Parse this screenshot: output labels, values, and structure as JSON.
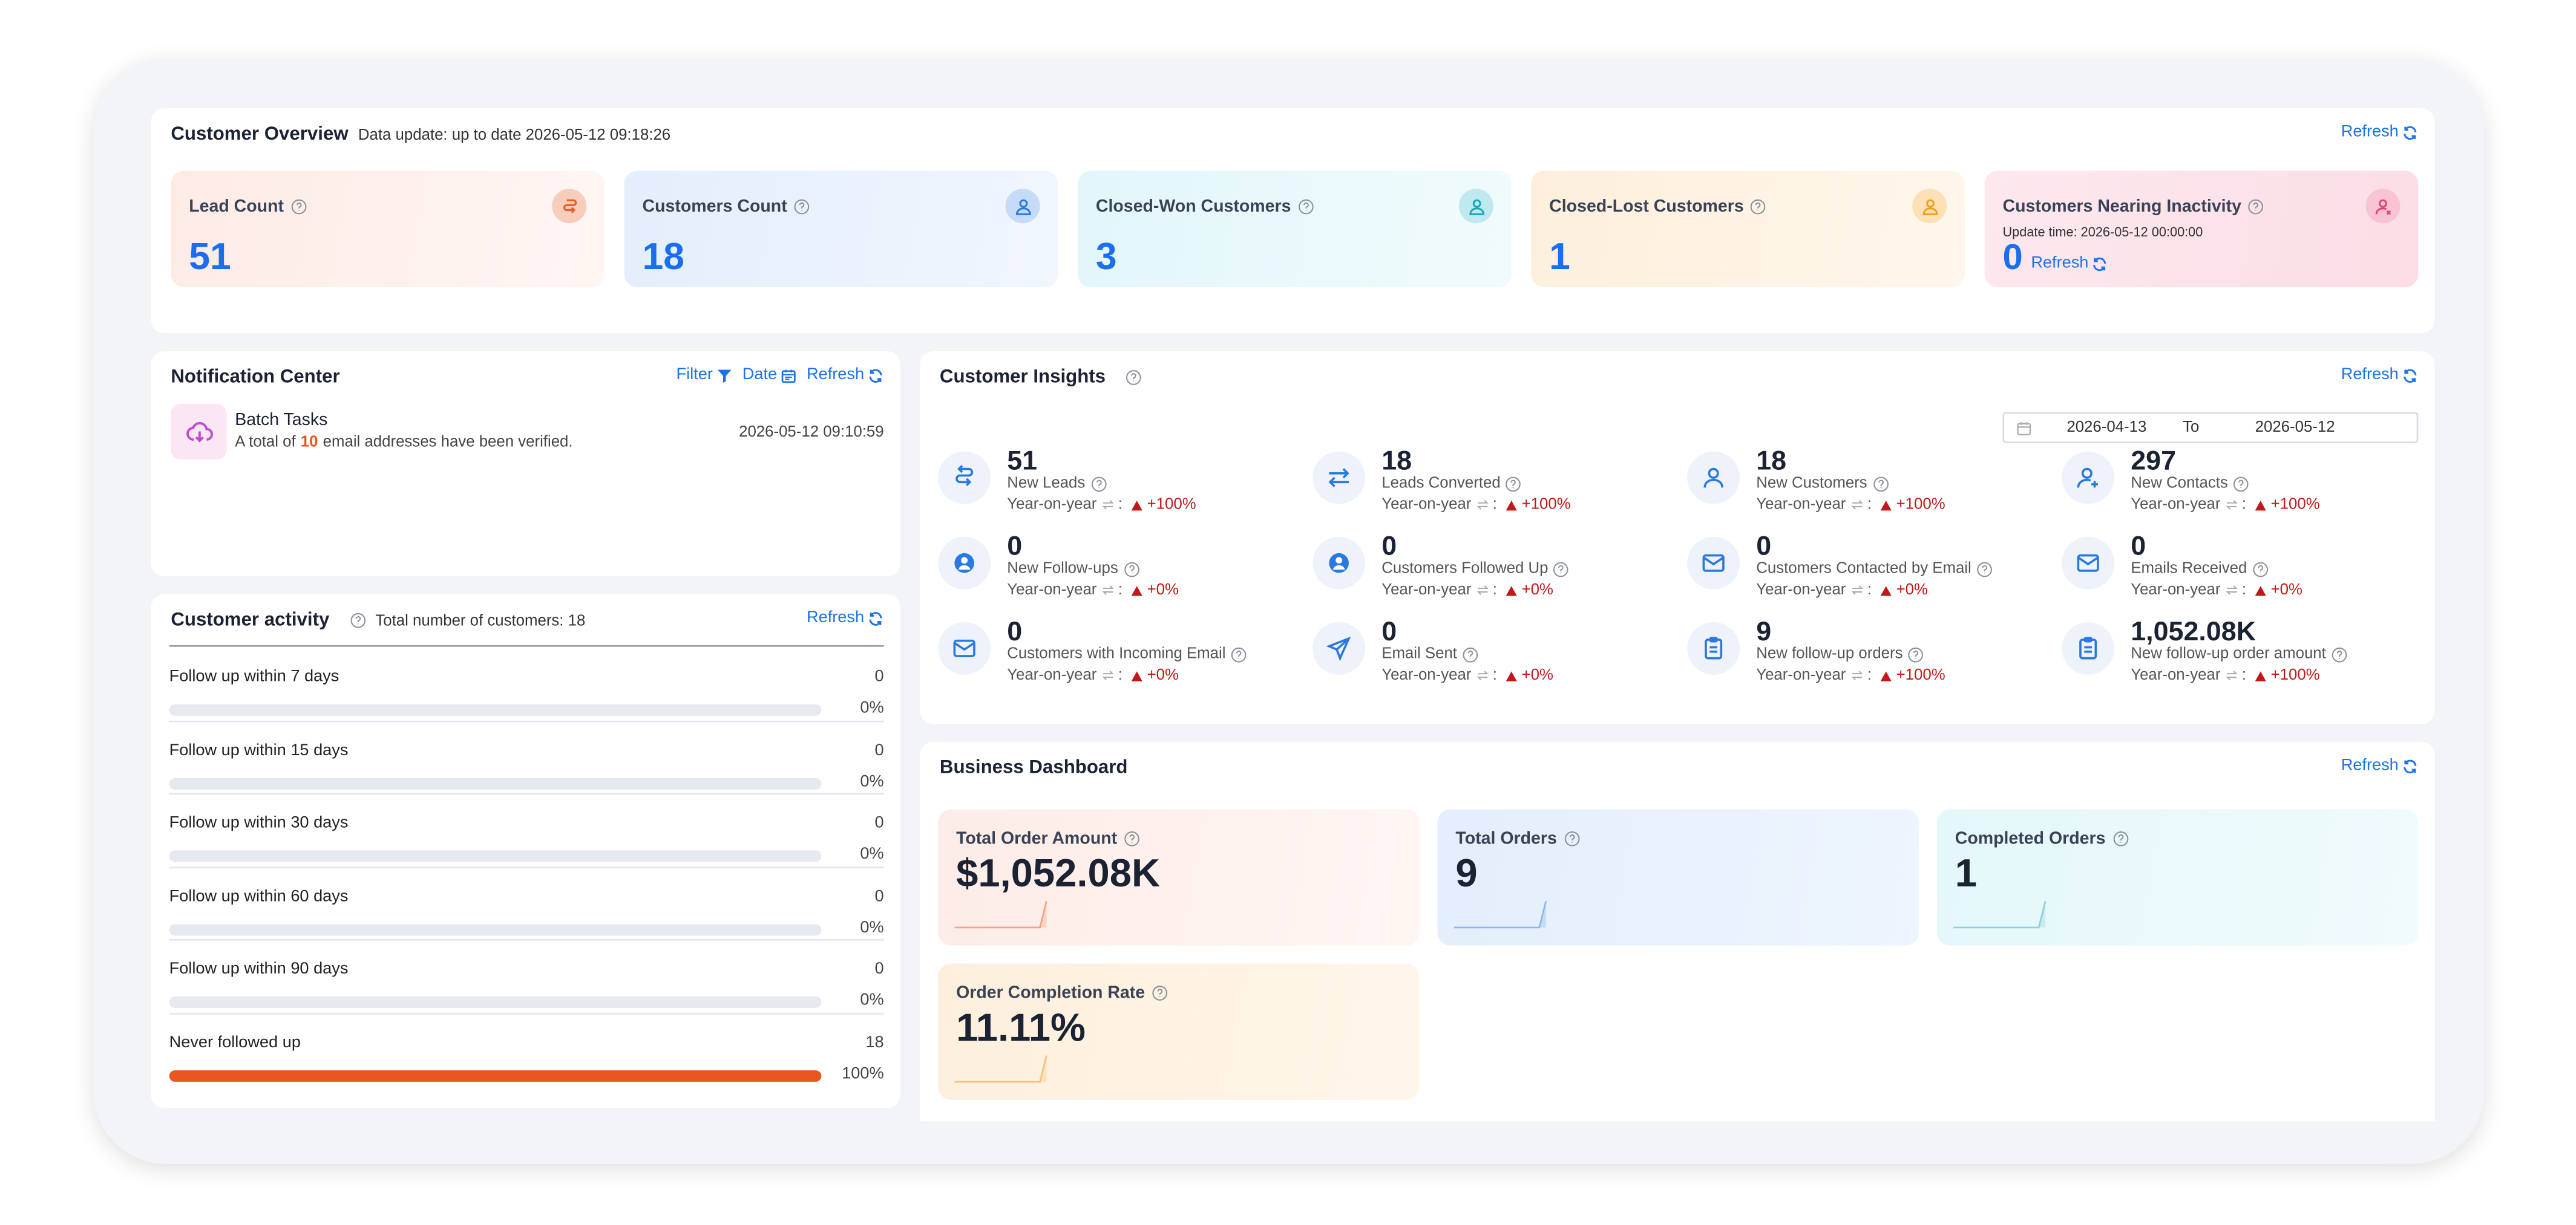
{
  "overview": {
    "title": "Customer Overview",
    "update": "Data update: up to date 2026-05-12 09:18:26",
    "refresh": "Refresh",
    "cards": [
      {
        "label": "Lead Count",
        "value": "51"
      },
      {
        "label": "Customers Count",
        "value": "18"
      },
      {
        "label": "Closed-Won Customers",
        "value": "3"
      },
      {
        "label": "Closed-Lost Customers",
        "value": "1"
      },
      {
        "label": "Customers Nearing Inactivity",
        "note": "Update time: 2026-05-12 00:00:00",
        "value": "0",
        "refresh": "Refresh"
      }
    ]
  },
  "notifications": {
    "title": "Notification Center",
    "filter": "Filter",
    "date": "Date",
    "refresh": "Refresh",
    "items": [
      {
        "title": "Batch Tasks",
        "text_before": "A total of",
        "count": "10",
        "text_after": "email addresses have been verified.",
        "time": "2026-05-12 09:10:59"
      }
    ]
  },
  "activity": {
    "title": "Customer activity",
    "total": "Total number of customers: 18",
    "refresh": "Refresh",
    "rows": [
      {
        "label": "Follow up within 7 days",
        "count": 0,
        "share": 0,
        "share_label": "0%"
      },
      {
        "label": "Follow up within 15 days",
        "count": 0,
        "share": 0,
        "share_label": "0%"
      },
      {
        "label": "Follow up within 30 days",
        "count": 0,
        "share": 0,
        "share_label": "0%"
      },
      {
        "label": "Follow up within 60 days",
        "count": 0,
        "share": 0,
        "share_label": "0%"
      },
      {
        "label": "Follow up within 90 days",
        "count": 0,
        "share": 0,
        "share_label": "0%"
      },
      {
        "label": "Never followed up",
        "count": 18,
        "share": 100,
        "share_label": "100%"
      }
    ]
  },
  "insights": {
    "title": "Customer Insights",
    "refresh": "Refresh",
    "start": "2026-04-13",
    "to": "To",
    "end": "2026-05-12",
    "yoy_label": "Year-on-year",
    "yoy_sep": ":",
    "metrics": [
      {
        "value": "51",
        "label": "New Leads",
        "change": "+100%"
      },
      {
        "value": "18",
        "label": "Leads Converted",
        "change": "+100%"
      },
      {
        "value": "18",
        "label": "New Customers",
        "change": "+100%"
      },
      {
        "value": "297",
        "label": "New Contacts",
        "change": "+100%"
      },
      {
        "value": "0",
        "label": "New Follow-ups",
        "change": "+0%"
      },
      {
        "value": "0",
        "label": "Customers Followed Up",
        "change": "+0%"
      },
      {
        "value": "0",
        "label": "Customers Contacted by Email",
        "change": "+0%"
      },
      {
        "value": "0",
        "label": "Emails Received",
        "change": "+0%"
      },
      {
        "value": "0",
        "label": "Customers with Incoming Email",
        "change": "+0%"
      },
      {
        "value": "0",
        "label": "Email Sent",
        "change": "+0%"
      },
      {
        "value": "9",
        "label": "New follow-up orders",
        "change": "+100%"
      },
      {
        "value": "1,052.08K",
        "label": "New follow-up order amount",
        "change": "+100%"
      }
    ]
  },
  "business": {
    "title": "Business Dashboard",
    "refresh": "Refresh",
    "cards": [
      {
        "label": "Total Order Amount",
        "value": "$1,052.08K"
      },
      {
        "label": "Total Orders",
        "value": "9"
      },
      {
        "label": "Completed Orders",
        "value": "1"
      },
      {
        "label": "Order Completion Rate",
        "value": "11.11%"
      }
    ]
  }
}
